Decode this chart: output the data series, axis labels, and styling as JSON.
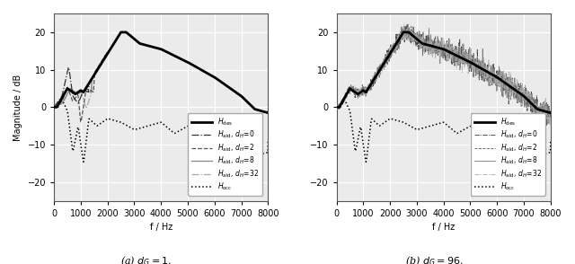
{
  "xlabel": "f / Hz",
  "ylabel": "Magnitude / dB",
  "xlim": [
    0,
    8000
  ],
  "ylim": [
    -25,
    25
  ],
  "yticks": [
    -20,
    -10,
    0,
    10,
    20
  ],
  "xticks": [
    0,
    1000,
    2000,
    3000,
    4000,
    5000,
    6000,
    7000,
    8000
  ],
  "bg_color": "#ebebeb",
  "grid_color": "#ffffff",
  "fig_bg": "#ffffff",
  "title_a": "(a) $d_G = 1$.",
  "title_b": "(b) $d_G = 96$."
}
